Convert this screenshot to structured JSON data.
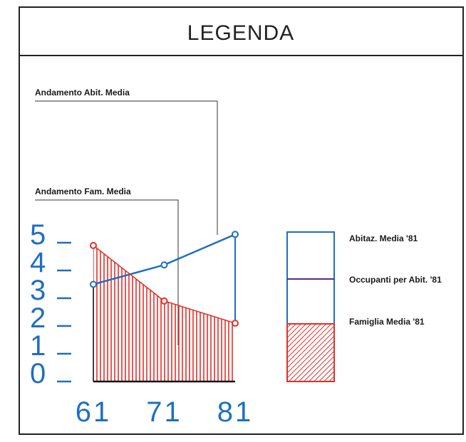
{
  "legend": {
    "title": "LEGENDA",
    "annotation_abit": "Andamento Abit. Media",
    "annotation_fam": "Andamento Fam. Media",
    "key": {
      "abitaz_label": "Abitaz. Media '81",
      "occupanti_label": "Occupanti per Abit. '81",
      "famiglia_label": "Famiglia Media '81"
    }
  },
  "colors": {
    "blue": "#1f6fc0",
    "red": "#e0302a",
    "purple": "#5a2a8a",
    "frame": "#222222"
  },
  "chart_data": {
    "type": "line",
    "x": [
      61,
      71,
      81
    ],
    "x_tick_labels": [
      "61",
      "71",
      "81"
    ],
    "y_tick_labels": [
      "0",
      "1",
      "2",
      "3",
      "4",
      "5"
    ],
    "ylim": [
      0,
      5
    ],
    "series": [
      {
        "name": "Andamento Abit. Media",
        "color": "#1f6fc0",
        "values": [
          3.5,
          4.2,
          5.3
        ]
      },
      {
        "name": "Andamento Fam. Media",
        "color": "#e0302a",
        "values": [
          4.9,
          2.9,
          2.1
        ],
        "fill": "hatched"
      }
    ],
    "key_bar": {
      "abitaz_media_81": 5.3,
      "occupanti_per_abit_81": 3.7,
      "famiglia_media_81": 2.1
    }
  }
}
